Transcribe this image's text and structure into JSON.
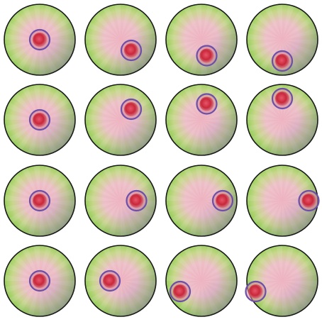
{
  "grid": {
    "rows": [
      {
        "row": 1,
        "cells": [
          {
            "col": 1,
            "marker_offset": [
              0.0,
              0.0
            ]
          },
          {
            "col": 2,
            "marker_offset": [
              0.3,
              0.3
            ]
          },
          {
            "col": 3,
            "marker_offset": [
              0.15,
              0.45
            ]
          },
          {
            "col": 4,
            "marker_offset": [
              0.0,
              0.6
            ]
          }
        ]
      },
      {
        "row": 2,
        "cells": [
          {
            "col": 1,
            "marker_offset": [
              0.0,
              0.0
            ]
          },
          {
            "col": 2,
            "marker_offset": [
              0.3,
              -0.3
            ]
          },
          {
            "col": 3,
            "marker_offset": [
              0.15,
              -0.45
            ]
          },
          {
            "col": 4,
            "marker_offset": [
              0.0,
              -0.6
            ]
          }
        ]
      },
      {
        "row": 3,
        "cells": [
          {
            "col": 1,
            "marker_offset": [
              0.0,
              0.0
            ]
          },
          {
            "col": 2,
            "marker_offset": [
              0.45,
              0.0
            ]
          },
          {
            "col": 3,
            "marker_offset": [
              0.6,
              0.0
            ]
          },
          {
            "col": 4,
            "marker_offset": [
              0.75,
              0.0
            ]
          }
        ]
      },
      {
        "row": 4,
        "cells": [
          {
            "col": 1,
            "marker_offset": [
              0.0,
              0.0
            ]
          },
          {
            "col": 2,
            "marker_offset": [
              -0.3,
              0.0
            ]
          },
          {
            "col": 3,
            "marker_offset": [
              -0.6,
              0.3
            ]
          },
          {
            "col": 4,
            "marker_offset": [
              -0.75,
              0.3
            ]
          }
        ]
      }
    ]
  },
  "colors": {
    "disc_rim": "#1a1a1a",
    "disc_green": "#8fd14f",
    "disc_pink": "#f3b3c0",
    "disc_purple": "#8a6aa8",
    "marker_ring": "#6b4fa8",
    "marker_core": "#c8283a",
    "marker_halo": "#d98a9a"
  }
}
